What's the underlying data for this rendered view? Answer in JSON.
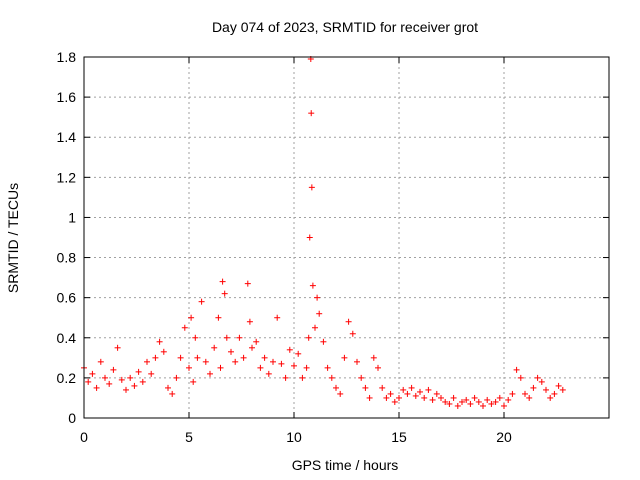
{
  "chart_data": {
    "type": "scatter",
    "title": "Day 074 of 2023, SRMTID for receiver grot",
    "xlabel": "GPS time / hours",
    "ylabel": "SRMTID / TECUs",
    "xlim": [
      0,
      25
    ],
    "ylim": [
      0,
      1.8
    ],
    "grid": true,
    "marker": "+",
    "color": "#ff0000",
    "x_ticks": [
      0,
      5,
      10,
      15,
      20
    ],
    "y_ticks": [
      0,
      0.2,
      0.4,
      0.6,
      0.8,
      1,
      1.2,
      1.4,
      1.6,
      1.8
    ],
    "x_tick_labels": [
      "0",
      "5",
      "10",
      "15",
      "20"
    ],
    "y_tick_labels": [
      "0",
      "0.2",
      "0.4",
      "0.6",
      "0.8",
      "1",
      "1.2",
      "1.4",
      "1.6",
      "1.8"
    ],
    "series": [
      {
        "name": "SRMTID",
        "x": [
          0.0,
          0.2,
          0.4,
          0.6,
          0.8,
          1.0,
          1.2,
          1.4,
          1.6,
          1.8,
          2.0,
          2.2,
          2.4,
          2.6,
          2.8,
          3.0,
          3.2,
          3.4,
          3.6,
          3.8,
          4.0,
          4.2,
          4.4,
          4.6,
          4.8,
          5.0,
          5.1,
          5.2,
          5.3,
          5.4,
          5.6,
          5.8,
          6.0,
          6.2,
          6.4,
          6.5,
          6.6,
          6.7,
          6.8,
          7.0,
          7.2,
          7.4,
          7.6,
          7.8,
          7.9,
          8.0,
          8.2,
          8.4,
          8.6,
          8.8,
          9.0,
          9.2,
          9.4,
          9.6,
          9.8,
          10.0,
          10.2,
          10.4,
          10.6,
          10.7,
          10.75,
          10.8,
          10.82,
          10.85,
          10.9,
          11.0,
          11.1,
          11.2,
          11.4,
          11.6,
          11.8,
          12.0,
          12.2,
          12.4,
          12.6,
          12.8,
          13.0,
          13.2,
          13.4,
          13.6,
          13.8,
          14.0,
          14.2,
          14.4,
          14.6,
          14.8,
          15.0,
          15.2,
          15.4,
          15.6,
          15.8,
          16.0,
          16.2,
          16.4,
          16.6,
          16.8,
          17.0,
          17.2,
          17.4,
          17.6,
          17.8,
          18.0,
          18.2,
          18.4,
          18.6,
          18.8,
          19.0,
          19.2,
          19.4,
          19.6,
          19.8,
          20.0,
          20.2,
          20.4,
          20.6,
          20.8,
          21.0,
          21.2,
          21.4,
          21.6,
          21.8,
          22.0,
          22.2,
          22.4,
          22.6,
          22.8
        ],
        "y": [
          0.25,
          0.18,
          0.22,
          0.15,
          0.28,
          0.2,
          0.17,
          0.24,
          0.35,
          0.19,
          0.14,
          0.2,
          0.16,
          0.23,
          0.18,
          0.28,
          0.22,
          0.3,
          0.38,
          0.33,
          0.15,
          0.12,
          0.2,
          0.3,
          0.45,
          0.25,
          0.5,
          0.18,
          0.4,
          0.3,
          0.58,
          0.28,
          0.22,
          0.35,
          0.5,
          0.25,
          0.68,
          0.62,
          0.4,
          0.33,
          0.28,
          0.4,
          0.3,
          0.67,
          0.48,
          0.35,
          0.38,
          0.25,
          0.3,
          0.22,
          0.28,
          0.5,
          0.27,
          0.2,
          0.34,
          0.26,
          0.32,
          0.2,
          0.25,
          0.4,
          0.9,
          1.79,
          1.52,
          1.15,
          0.66,
          0.45,
          0.6,
          0.52,
          0.38,
          0.25,
          0.2,
          0.15,
          0.12,
          0.3,
          0.48,
          0.42,
          0.28,
          0.2,
          0.15,
          0.1,
          0.3,
          0.25,
          0.15,
          0.1,
          0.12,
          0.08,
          0.1,
          0.14,
          0.12,
          0.15,
          0.11,
          0.13,
          0.1,
          0.14,
          0.09,
          0.12,
          0.1,
          0.08,
          0.07,
          0.1,
          0.06,
          0.08,
          0.09,
          0.07,
          0.1,
          0.08,
          0.06,
          0.09,
          0.07,
          0.08,
          0.1,
          0.06,
          0.09,
          0.12,
          0.24,
          0.2,
          0.12,
          0.1,
          0.15,
          0.2,
          0.18,
          0.14,
          0.1,
          0.12,
          0.16,
          0.14
        ]
      }
    ]
  }
}
